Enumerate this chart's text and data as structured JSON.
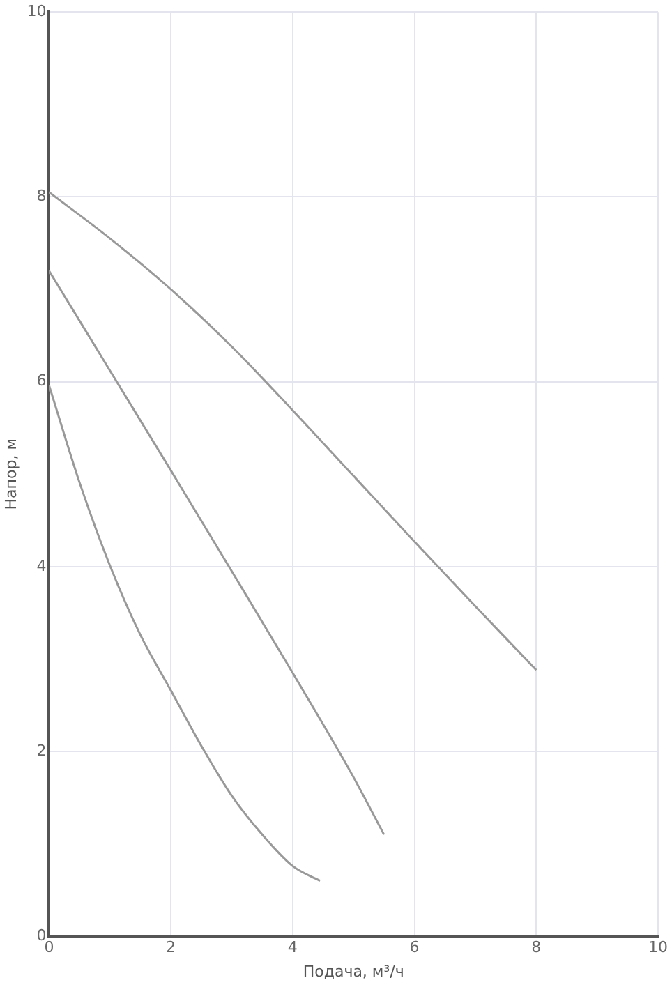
{
  "chart_data": {
    "type": "line",
    "xlabel": "Подача, м³/ч",
    "ylabel": "Напор, м",
    "xlim": [
      0,
      10
    ],
    "ylim": [
      0,
      10
    ],
    "xticks": [
      0,
      2,
      4,
      6,
      8,
      10
    ],
    "yticks": [
      0,
      2,
      4,
      6,
      8,
      10
    ],
    "grid": true,
    "legend": false,
    "marker": "none",
    "series": [
      {
        "color": "#999999",
        "x": [
          0,
          1,
          2,
          3,
          4,
          5,
          6,
          7,
          8
        ],
        "values": [
          8.05,
          7.55,
          7.0,
          6.38,
          5.69,
          4.98,
          4.27,
          3.57,
          2.88
        ]
      },
      {
        "color": "#999999",
        "x": [
          0,
          1,
          2,
          3,
          4,
          5,
          5.5
        ],
        "values": [
          7.2,
          6.12,
          5.04,
          3.95,
          2.85,
          1.72,
          1.1
        ]
      },
      {
        "color": "#999999",
        "x": [
          0,
          0.5,
          1,
          1.5,
          2,
          2.5,
          3,
          3.5,
          4,
          4.45
        ],
        "values": [
          5.96,
          4.91,
          4.01,
          3.26,
          2.66,
          2.06,
          1.52,
          1.1,
          0.76,
          0.6
        ]
      }
    ]
  }
}
